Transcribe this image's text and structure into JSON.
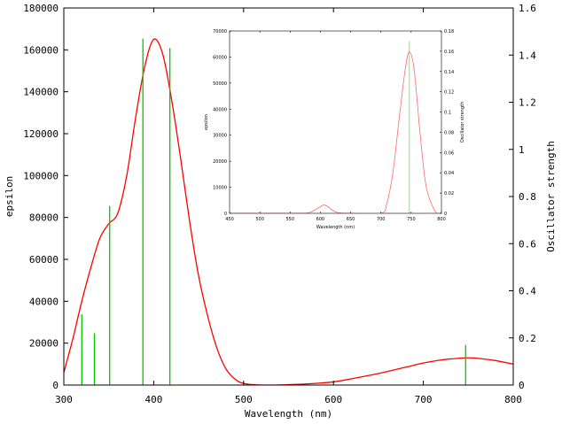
{
  "colors": {
    "spectrum": "#ff0000",
    "stick": "#00c800",
    "axis": "#000000",
    "inset_spectrum": "#ff6a6a",
    "inset_stick": "#66e066"
  },
  "chart_data": [
    {
      "id": "main",
      "type": "line",
      "xlabel": "Wavelength (nm)",
      "ylabel": "epsilon",
      "y2label": "Oscillator strength",
      "xlim": [
        300,
        800
      ],
      "ylim": [
        0,
        180000
      ],
      "y2lim": [
        0,
        1.6
      ],
      "grid": false,
      "x_ticks": [
        300,
        400,
        500,
        600,
        700,
        800
      ],
      "y_ticks": [
        0,
        20000,
        40000,
        60000,
        80000,
        100000,
        120000,
        140000,
        160000,
        180000
      ],
      "y2_ticks": [
        0,
        0.2,
        0.4,
        0.6,
        0.8,
        1,
        1.2,
        1.4,
        1.6
      ],
      "series": [
        {
          "kind": "spectrum",
          "x": [
            300,
            310,
            320,
            330,
            340,
            350,
            360,
            370,
            380,
            390,
            400,
            410,
            420,
            430,
            440,
            450,
            460,
            470,
            480,
            490,
            500,
            520,
            550,
            580,
            600,
            620,
            650,
            680,
            700,
            720,
            740,
            750,
            760,
            780,
            800
          ],
          "y": [
            6000,
            22000,
            40000,
            56000,
            70000,
            77000,
            82000,
            100000,
            128000,
            152000,
            165000,
            158000,
            136000,
            108000,
            78000,
            52000,
            33000,
            18000,
            8000,
            3000,
            800,
            0,
            200,
            800,
            1500,
            3000,
            5500,
            8500,
            10500,
            12000,
            12800,
            13000,
            12800,
            11700,
            10000
          ]
        },
        {
          "kind": "sticks",
          "x": [
            320,
            334,
            351,
            388,
            418,
            747
          ],
          "y": [
            0.3,
            0.22,
            0.76,
            1.47,
            1.43,
            0.17
          ]
        }
      ]
    },
    {
      "id": "inset",
      "type": "line",
      "xlabel": "Wavelength (nm)",
      "ylabel": "epsilon",
      "y2label": "Oscillator strength",
      "xlim": [
        450,
        800
      ],
      "ylim": [
        0,
        70000
      ],
      "y2lim": [
        0,
        0.18
      ],
      "grid": false,
      "x_ticks": [
        450,
        500,
        550,
        600,
        650,
        700,
        750,
        800
      ],
      "y_ticks": [
        0,
        10000,
        20000,
        30000,
        40000,
        50000,
        60000,
        70000
      ],
      "y2_ticks": [
        0,
        0.02,
        0.04,
        0.06,
        0.08,
        0.1,
        0.12,
        0.14,
        0.16,
        0.18
      ],
      "series": [
        {
          "kind": "spectrum",
          "x": [
            450,
            560,
            580,
            590,
            600,
            606,
            612,
            620,
            630,
            650,
            700,
            710,
            720,
            730,
            740,
            747,
            755,
            765,
            775,
            790,
            800
          ],
          "y": [
            0,
            0,
            200,
            1200,
            2600,
            3200,
            2600,
            1200,
            200,
            0,
            0,
            4000,
            16000,
            36000,
            55000,
            62000,
            55000,
            30000,
            10000,
            600,
            0
          ]
        },
        {
          "kind": "sticks",
          "x": [
            747
          ],
          "y": [
            0.17
          ]
        }
      ]
    }
  ]
}
